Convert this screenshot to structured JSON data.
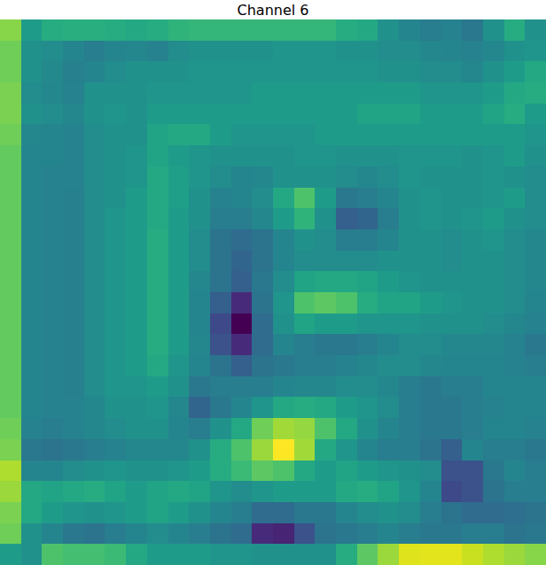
{
  "chart_data": {
    "type": "heatmap",
    "title": "Channel 6",
    "color": "viridis",
    "tick_labels": false,
    "grid": false,
    "values": [
      [
        0.82,
        0.55,
        0.62,
        0.63,
        0.63,
        0.62,
        0.6,
        0.62,
        0.65,
        0.66,
        0.66,
        0.66,
        0.66,
        0.66,
        0.66,
        0.66,
        0.62,
        0.6,
        0.5,
        0.45,
        0.42,
        0.44,
        0.4,
        0.5,
        0.62,
        0.5
      ],
      [
        0.78,
        0.5,
        0.48,
        0.45,
        0.42,
        0.45,
        0.46,
        0.44,
        0.48,
        0.5,
        0.5,
        0.5,
        0.5,
        0.52,
        0.52,
        0.52,
        0.5,
        0.5,
        0.48,
        0.48,
        0.46,
        0.45,
        0.44,
        0.46,
        0.5,
        0.52
      ],
      [
        0.78,
        0.5,
        0.47,
        0.43,
        0.45,
        0.48,
        0.5,
        0.5,
        0.5,
        0.52,
        0.52,
        0.52,
        0.52,
        0.52,
        0.52,
        0.52,
        0.52,
        0.52,
        0.5,
        0.5,
        0.48,
        0.48,
        0.46,
        0.5,
        0.55,
        0.6
      ],
      [
        0.8,
        0.48,
        0.46,
        0.44,
        0.5,
        0.5,
        0.5,
        0.52,
        0.52,
        0.52,
        0.52,
        0.52,
        0.55,
        0.55,
        0.55,
        0.55,
        0.55,
        0.55,
        0.55,
        0.55,
        0.52,
        0.52,
        0.52,
        0.55,
        0.6,
        0.62
      ],
      [
        0.8,
        0.5,
        0.48,
        0.46,
        0.5,
        0.52,
        0.5,
        0.55,
        0.55,
        0.55,
        0.55,
        0.55,
        0.55,
        0.55,
        0.55,
        0.55,
        0.55,
        0.58,
        0.58,
        0.58,
        0.55,
        0.55,
        0.55,
        0.58,
        0.62,
        0.55
      ],
      [
        0.78,
        0.46,
        0.45,
        0.44,
        0.48,
        0.5,
        0.5,
        0.58,
        0.6,
        0.6,
        0.55,
        0.52,
        0.52,
        0.52,
        0.52,
        0.55,
        0.55,
        0.55,
        0.55,
        0.55,
        0.55,
        0.55,
        0.55,
        0.55,
        0.55,
        0.52
      ],
      [
        0.76,
        0.45,
        0.45,
        0.44,
        0.48,
        0.5,
        0.52,
        0.58,
        0.55,
        0.52,
        0.5,
        0.5,
        0.5,
        0.5,
        0.52,
        0.52,
        0.5,
        0.5,
        0.5,
        0.52,
        0.52,
        0.52,
        0.5,
        0.52,
        0.55,
        0.5
      ],
      [
        0.76,
        0.45,
        0.44,
        0.44,
        0.48,
        0.5,
        0.52,
        0.6,
        0.56,
        0.52,
        0.48,
        0.45,
        0.46,
        0.5,
        0.5,
        0.5,
        0.48,
        0.46,
        0.48,
        0.52,
        0.5,
        0.5,
        0.5,
        0.52,
        0.5,
        0.48
      ],
      [
        0.76,
        0.45,
        0.44,
        0.43,
        0.48,
        0.5,
        0.55,
        0.6,
        0.56,
        0.5,
        0.44,
        0.45,
        0.48,
        0.6,
        0.72,
        0.55,
        0.4,
        0.42,
        0.45,
        0.5,
        0.52,
        0.5,
        0.5,
        0.52,
        0.55,
        0.48
      ],
      [
        0.76,
        0.45,
        0.44,
        0.43,
        0.48,
        0.52,
        0.55,
        0.6,
        0.55,
        0.5,
        0.42,
        0.42,
        0.46,
        0.55,
        0.65,
        0.5,
        0.3,
        0.32,
        0.42,
        0.5,
        0.52,
        0.5,
        0.52,
        0.55,
        0.5,
        0.48
      ],
      [
        0.76,
        0.45,
        0.44,
        0.43,
        0.48,
        0.52,
        0.55,
        0.62,
        0.55,
        0.48,
        0.38,
        0.35,
        0.38,
        0.45,
        0.5,
        0.48,
        0.42,
        0.42,
        0.45,
        0.5,
        0.5,
        0.48,
        0.5,
        0.52,
        0.48,
        0.46
      ],
      [
        0.76,
        0.45,
        0.44,
        0.43,
        0.48,
        0.52,
        0.55,
        0.62,
        0.55,
        0.48,
        0.38,
        0.32,
        0.38,
        0.45,
        0.48,
        0.48,
        0.48,
        0.48,
        0.5,
        0.5,
        0.5,
        0.48,
        0.5,
        0.5,
        0.48,
        0.46
      ],
      [
        0.76,
        0.45,
        0.44,
        0.43,
        0.48,
        0.52,
        0.55,
        0.62,
        0.55,
        0.46,
        0.38,
        0.3,
        0.4,
        0.48,
        0.58,
        0.6,
        0.6,
        0.58,
        0.55,
        0.52,
        0.5,
        0.5,
        0.5,
        0.5,
        0.48,
        0.46
      ],
      [
        0.76,
        0.45,
        0.44,
        0.43,
        0.48,
        0.52,
        0.55,
        0.62,
        0.55,
        0.45,
        0.3,
        0.12,
        0.38,
        0.52,
        0.72,
        0.75,
        0.72,
        0.62,
        0.58,
        0.58,
        0.55,
        0.52,
        0.5,
        0.5,
        0.48,
        0.45
      ],
      [
        0.76,
        0.45,
        0.44,
        0.43,
        0.48,
        0.52,
        0.55,
        0.62,
        0.55,
        0.45,
        0.22,
        0.0,
        0.35,
        0.5,
        0.58,
        0.55,
        0.55,
        0.52,
        0.52,
        0.52,
        0.5,
        0.5,
        0.5,
        0.48,
        0.46,
        0.44
      ],
      [
        0.76,
        0.45,
        0.44,
        0.43,
        0.48,
        0.52,
        0.55,
        0.62,
        0.55,
        0.46,
        0.25,
        0.12,
        0.35,
        0.45,
        0.42,
        0.4,
        0.4,
        0.42,
        0.45,
        0.48,
        0.48,
        0.46,
        0.46,
        0.46,
        0.44,
        0.4
      ],
      [
        0.76,
        0.45,
        0.44,
        0.43,
        0.48,
        0.52,
        0.55,
        0.6,
        0.52,
        0.45,
        0.38,
        0.3,
        0.38,
        0.4,
        0.42,
        0.42,
        0.44,
        0.46,
        0.48,
        0.48,
        0.46,
        0.45,
        0.45,
        0.45,
        0.44,
        0.42
      ],
      [
        0.76,
        0.45,
        0.44,
        0.43,
        0.48,
        0.52,
        0.52,
        0.55,
        0.5,
        0.4,
        0.42,
        0.42,
        0.42,
        0.45,
        0.46,
        0.46,
        0.48,
        0.48,
        0.46,
        0.42,
        0.4,
        0.42,
        0.42,
        0.45,
        0.45,
        0.45
      ],
      [
        0.76,
        0.45,
        0.44,
        0.44,
        0.46,
        0.5,
        0.5,
        0.52,
        0.46,
        0.32,
        0.4,
        0.45,
        0.52,
        0.6,
        0.62,
        0.6,
        0.55,
        0.52,
        0.48,
        0.42,
        0.4,
        0.4,
        0.42,
        0.44,
        0.45,
        0.45
      ],
      [
        0.78,
        0.44,
        0.42,
        0.44,
        0.46,
        0.48,
        0.5,
        0.5,
        0.45,
        0.42,
        0.5,
        0.6,
        0.78,
        0.86,
        0.84,
        0.72,
        0.6,
        0.5,
        0.45,
        0.42,
        0.4,
        0.4,
        0.42,
        0.45,
        0.45,
        0.44
      ],
      [
        0.8,
        0.4,
        0.38,
        0.4,
        0.42,
        0.44,
        0.46,
        0.46,
        0.46,
        0.5,
        0.62,
        0.72,
        0.85,
        1.0,
        0.86,
        0.6,
        0.52,
        0.45,
        0.42,
        0.42,
        0.38,
        0.3,
        0.45,
        0.42,
        0.42,
        0.4
      ],
      [
        0.88,
        0.45,
        0.45,
        0.48,
        0.5,
        0.52,
        0.5,
        0.5,
        0.52,
        0.55,
        0.62,
        0.68,
        0.75,
        0.72,
        0.6,
        0.55,
        0.58,
        0.55,
        0.52,
        0.5,
        0.48,
        0.25,
        0.25,
        0.4,
        0.45,
        0.42
      ],
      [
        0.85,
        0.6,
        0.58,
        0.6,
        0.62,
        0.58,
        0.55,
        0.58,
        0.6,
        0.58,
        0.52,
        0.48,
        0.52,
        0.55,
        0.55,
        0.55,
        0.6,
        0.62,
        0.58,
        0.52,
        0.45,
        0.22,
        0.25,
        0.38,
        0.42,
        0.42
      ],
      [
        0.8,
        0.6,
        0.55,
        0.52,
        0.5,
        0.52,
        0.55,
        0.58,
        0.55,
        0.5,
        0.45,
        0.42,
        0.35,
        0.35,
        0.4,
        0.4,
        0.45,
        0.48,
        0.5,
        0.48,
        0.42,
        0.38,
        0.35,
        0.35,
        0.36,
        0.38
      ],
      [
        0.78,
        0.5,
        0.45,
        0.4,
        0.38,
        0.42,
        0.45,
        0.48,
        0.45,
        0.42,
        0.38,
        0.35,
        0.12,
        0.1,
        0.25,
        0.38,
        0.4,
        0.42,
        0.45,
        0.42,
        0.4,
        0.4,
        0.42,
        0.42,
        0.38,
        0.4
      ],
      [
        0.55,
        0.5,
        0.72,
        0.7,
        0.7,
        0.68,
        0.6,
        0.55,
        0.55,
        0.55,
        0.52,
        0.52,
        0.5,
        0.5,
        0.5,
        0.5,
        0.62,
        0.75,
        0.85,
        0.95,
        0.96,
        0.96,
        0.92,
        0.88,
        0.85,
        0.82
      ]
    ]
  }
}
